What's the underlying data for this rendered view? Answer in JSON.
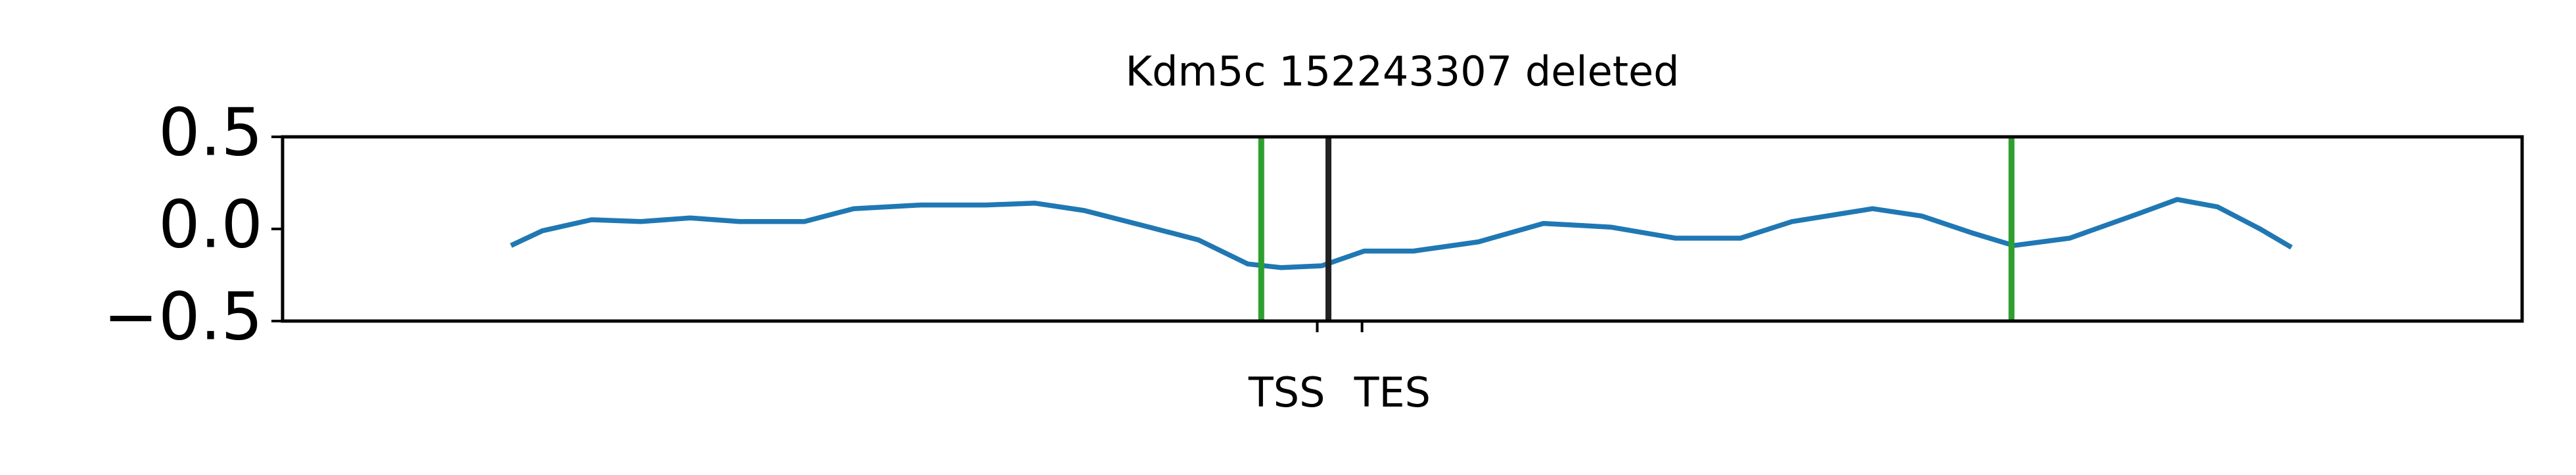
{
  "chart_data": {
    "type": "line",
    "title": "Kdm5c 152243307 deleted",
    "x": [
      10.2,
      11.6,
      13.8,
      16.0,
      18.2,
      20.4,
      23.3,
      25.5,
      28.5,
      31.4,
      33.6,
      35.8,
      38.7,
      40.9,
      43.1,
      44.6,
      46.4,
      48.3,
      50.5,
      53.4,
      56.3,
      59.3,
      62.2,
      65.1,
      67.4,
      71.0,
      73.2,
      75.4,
      77.3,
      79.8,
      82.8,
      84.6,
      86.4,
      88.3,
      89.7
    ],
    "series": [
      {
        "color": "#1f77b4",
        "values": [
          -0.09,
          -0.01,
          0.05,
          0.04,
          0.06,
          0.04,
          0.04,
          0.11,
          0.13,
          0.13,
          0.14,
          0.1,
          0.01,
          -0.06,
          -0.19,
          -0.21,
          -0.2,
          -0.12,
          -0.12,
          -0.07,
          0.03,
          0.01,
          -0.05,
          -0.05,
          0.04,
          0.11,
          0.07,
          -0.02,
          -0.09,
          -0.05,
          0.08,
          0.16,
          0.12,
          0.0,
          -0.1
        ]
      }
    ],
    "vlines": [
      {
        "x": 43.7,
        "color": "#2ca02c"
      },
      {
        "x": 46.7,
        "color": "#222222"
      },
      {
        "x": 77.2,
        "color": "#2ca02c"
      }
    ],
    "xlim": [
      0,
      100
    ],
    "xticks": [
      {
        "value": 46.2,
        "label": "TSS"
      },
      {
        "value": 48.2,
        "label": "TES"
      }
    ],
    "ylim": [
      -0.5,
      0.5
    ],
    "yticks": [
      {
        "value": -0.5,
        "label": "−0.5"
      },
      {
        "value": 0,
        "label": "0.0"
      },
      0.5
    ]
  }
}
